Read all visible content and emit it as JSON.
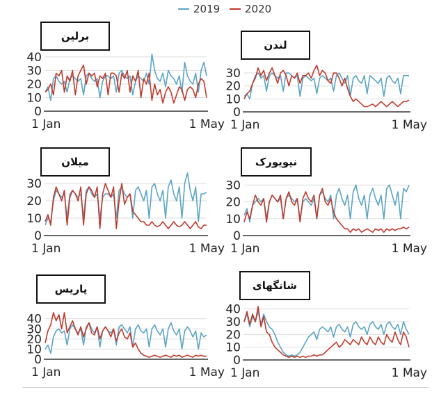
{
  "legend": {
    "items": [
      {
        "label": "2019",
        "color": "#5aa4c4"
      },
      {
        "label": "2020",
        "color": "#c0392b"
      }
    ]
  },
  "colors": {
    "s2019": "#5aa4c4",
    "s2020": "#c0392b",
    "grid": "#dddddd",
    "axis": "#333333"
  },
  "chart_data": [
    {
      "type": "line",
      "title": "برلین",
      "x_ticks": [
        "1 Jan",
        "1 May"
      ],
      "x_range": [
        "1 Jan",
        "1 May"
      ],
      "ylim": [
        0,
        42
      ],
      "y_ticks": [
        0,
        10,
        20,
        30,
        40
      ],
      "series": [
        {
          "name": "2019",
          "values": [
            14,
            18,
            8,
            24,
            26,
            22,
            20,
            22,
            14,
            24,
            26,
            24,
            22,
            24,
            12,
            26,
            28,
            24,
            22,
            24,
            10,
            22,
            26,
            26,
            24,
            26,
            14,
            28,
            30,
            26,
            24,
            26,
            12,
            22,
            26,
            24,
            22,
            28,
            20,
            42,
            30,
            24,
            22,
            28,
            18,
            30,
            26,
            24,
            20,
            26,
            14,
            36,
            26,
            22,
            20,
            28,
            14,
            30,
            36,
            26
          ]
        },
        {
          "name": "2020",
          "values": [
            14,
            16,
            20,
            12,
            28,
            26,
            30,
            14,
            26,
            22,
            30,
            12,
            26,
            30,
            34,
            20,
            28,
            26,
            28,
            18,
            26,
            24,
            28,
            12,
            28,
            28,
            26,
            14,
            28,
            24,
            30,
            14,
            26,
            22,
            30,
            10,
            24,
            20,
            28,
            8,
            20,
            12,
            16,
            6,
            14,
            18,
            14,
            6,
            12,
            18,
            16,
            8,
            16,
            18,
            16,
            10,
            20,
            24,
            22,
            10
          ]
        }
      ]
    },
    {
      "type": "line",
      "title": "لندن",
      "x_ticks": [
        "1 Jan",
        "1 May"
      ],
      "x_range": [
        "1 Jan",
        "1 May"
      ],
      "ylim": [
        0,
        37
      ],
      "y_ticks": [
        0,
        10,
        20,
        30
      ],
      "series": [
        {
          "name": "2019",
          "values": [
            12,
            14,
            10,
            22,
            28,
            30,
            26,
            28,
            16,
            28,
            30,
            28,
            26,
            28,
            16,
            30,
            30,
            28,
            26,
            28,
            12,
            26,
            28,
            26,
            24,
            26,
            14,
            26,
            28,
            26,
            24,
            26,
            16,
            28,
            30,
            26,
            22,
            28,
            12,
            26,
            28,
            24,
            22,
            28,
            14,
            28,
            26,
            24,
            22,
            26,
            12,
            26,
            28,
            24,
            22,
            26,
            14,
            28,
            28,
            28
          ]
        },
        {
          "name": "2020",
          "values": [
            10,
            14,
            16,
            22,
            26,
            34,
            28,
            32,
            24,
            30,
            34,
            28,
            22,
            30,
            32,
            28,
            20,
            28,
            26,
            30,
            22,
            28,
            28,
            30,
            26,
            32,
            36,
            28,
            32,
            30,
            24,
            22,
            30,
            30,
            26,
            20,
            26,
            18,
            12,
            8,
            10,
            8,
            6,
            4,
            4,
            5,
            6,
            4,
            6,
            8,
            6,
            4,
            6,
            8,
            6,
            4,
            6,
            8,
            8,
            9
          ]
        }
      ]
    },
    {
      "type": "line",
      "title": "میلان",
      "x_ticks": [
        "1 Jan",
        "1 May"
      ],
      "x_range": [
        "1 Jan",
        "1 May"
      ],
      "ylim": [
        0,
        32
      ],
      "y_ticks": [
        0,
        10,
        20,
        30
      ],
      "series": [
        {
          "name": "2019",
          "values": [
            6,
            10,
            8,
            20,
            26,
            24,
            22,
            24,
            10,
            24,
            26,
            24,
            22,
            24,
            10,
            26,
            28,
            24,
            22,
            24,
            10,
            22,
            24,
            24,
            22,
            24,
            10,
            26,
            28,
            24,
            22,
            24,
            10,
            26,
            28,
            24,
            20,
            26,
            10,
            28,
            30,
            24,
            20,
            26,
            10,
            28,
            32,
            24,
            20,
            28,
            10,
            30,
            36,
            26,
            20,
            28,
            8,
            24,
            24,
            25
          ]
        },
        {
          "name": "2020",
          "values": [
            8,
            12,
            6,
            22,
            28,
            24,
            20,
            26,
            6,
            22,
            26,
            24,
            20,
            28,
            6,
            24,
            28,
            26,
            22,
            28,
            4,
            24,
            30,
            26,
            22,
            28,
            4,
            20,
            30,
            18,
            22,
            24,
            14,
            12,
            10,
            8,
            8,
            6,
            6,
            8,
            6,
            5,
            6,
            8,
            6,
            4,
            6,
            8,
            6,
            5,
            6,
            8,
            6,
            4,
            6,
            8,
            5,
            4,
            6,
            6
          ]
        }
      ]
    },
    {
      "type": "line",
      "title": "نیویورک",
      "x_ticks": [
        "1 Jan",
        "1 May"
      ],
      "x_range": [
        "1 Jan",
        "1 May"
      ],
      "ylim": [
        0,
        33
      ],
      "y_ticks": [
        0,
        10,
        20,
        30
      ],
      "series": [
        {
          "name": "2019",
          "values": [
            12,
            16,
            8,
            18,
            20,
            22,
            20,
            22,
            10,
            20,
            24,
            22,
            20,
            22,
            10,
            22,
            24,
            22,
            20,
            22,
            10,
            20,
            22,
            20,
            18,
            22,
            10,
            24,
            26,
            22,
            20,
            24,
            10,
            24,
            28,
            22,
            18,
            24,
            10,
            26,
            30,
            22,
            18,
            24,
            10,
            24,
            28,
            22,
            18,
            24,
            10,
            28,
            30,
            24,
            18,
            26,
            10,
            28,
            26,
            30
          ]
        },
        {
          "name": "2020",
          "values": [
            8,
            14,
            10,
            18,
            24,
            20,
            18,
            22,
            8,
            20,
            24,
            22,
            20,
            24,
            10,
            22,
            26,
            20,
            18,
            22,
            8,
            22,
            26,
            22,
            20,
            24,
            10,
            24,
            28,
            20,
            18,
            22,
            14,
            10,
            8,
            6,
            4,
            4,
            2,
            4,
            3,
            4,
            2,
            3,
            4,
            3,
            2,
            4,
            3,
            4,
            2,
            4,
            3,
            4,
            3,
            4,
            4,
            5,
            4,
            5
          ]
        }
      ]
    },
    {
      "type": "line",
      "title": "پاریس",
      "x_ticks": [
        "1 Jan",
        "1 May"
      ],
      "x_range": [
        "1 Jan",
        "1 May"
      ],
      "ylim": [
        0,
        48
      ],
      "y_ticks": [
        0,
        10,
        20,
        30,
        40
      ],
      "series": [
        {
          "name": "2019",
          "values": [
            10,
            14,
            6,
            22,
            28,
            30,
            26,
            28,
            14,
            30,
            34,
            30,
            26,
            30,
            14,
            32,
            36,
            30,
            26,
            32,
            12,
            28,
            32,
            28,
            26,
            30,
            14,
            32,
            34,
            30,
            26,
            32,
            12,
            30,
            34,
            28,
            26,
            30,
            12,
            30,
            34,
            28,
            24,
            30,
            12,
            30,
            36,
            28,
            24,
            30,
            10,
            28,
            32,
            28,
            22,
            28,
            10,
            26,
            22,
            24
          ]
        },
        {
          "name": "2020",
          "values": [
            16,
            28,
            34,
            46,
            38,
            44,
            30,
            46,
            26,
            32,
            38,
            30,
            24,
            32,
            22,
            30,
            36,
            26,
            24,
            32,
            20,
            28,
            32,
            28,
            22,
            30,
            18,
            26,
            30,
            22,
            20,
            26,
            12,
            16,
            10,
            6,
            4,
            3,
            2,
            3,
            4,
            3,
            2,
            3,
            4,
            3,
            2,
            4,
            3,
            4,
            2,
            3,
            4,
            3,
            2,
            4,
            3,
            4,
            3,
            3
          ]
        }
      ]
    },
    {
      "type": "line",
      "title": "شانگهای",
      "x_ticks": [
        "1 Jan",
        "1 May"
      ],
      "x_range": [
        "1 Jan",
        "1 May"
      ],
      "ylim": [
        0,
        42
      ],
      "y_ticks": [
        0,
        10,
        20,
        30,
        40
      ],
      "series": [
        {
          "name": "2019",
          "values": [
            30,
            36,
            26,
            34,
            30,
            38,
            28,
            36,
            30,
            26,
            24,
            20,
            14,
            10,
            6,
            4,
            3,
            4,
            3,
            4,
            6,
            10,
            14,
            18,
            20,
            22,
            16,
            24,
            26,
            24,
            22,
            26,
            18,
            26,
            28,
            24,
            22,
            26,
            18,
            28,
            30,
            26,
            24,
            26,
            20,
            28,
            30,
            26,
            24,
            28,
            20,
            28,
            30,
            26,
            24,
            28,
            20,
            30,
            24,
            20
          ]
        },
        {
          "name": "2020",
          "values": [
            30,
            38,
            28,
            36,
            30,
            42,
            26,
            34,
            22,
            20,
            14,
            10,
            8,
            6,
            4,
            3,
            2,
            3,
            2,
            3,
            2,
            3,
            2,
            3,
            3,
            4,
            3,
            4,
            4,
            6,
            8,
            10,
            12,
            14,
            10,
            12,
            16,
            14,
            12,
            16,
            14,
            12,
            18,
            14,
            12,
            18,
            14,
            12,
            18,
            14,
            12,
            20,
            16,
            14,
            22,
            16,
            12,
            22,
            18,
            10
          ]
        }
      ]
    }
  ],
  "panels": [
    {
      "city": "برلین"
    },
    {
      "city": "لندن"
    },
    {
      "city": "میلان"
    },
    {
      "city": "نیویورک"
    },
    {
      "city": "پاریس"
    },
    {
      "city": "شانگهای"
    }
  ]
}
